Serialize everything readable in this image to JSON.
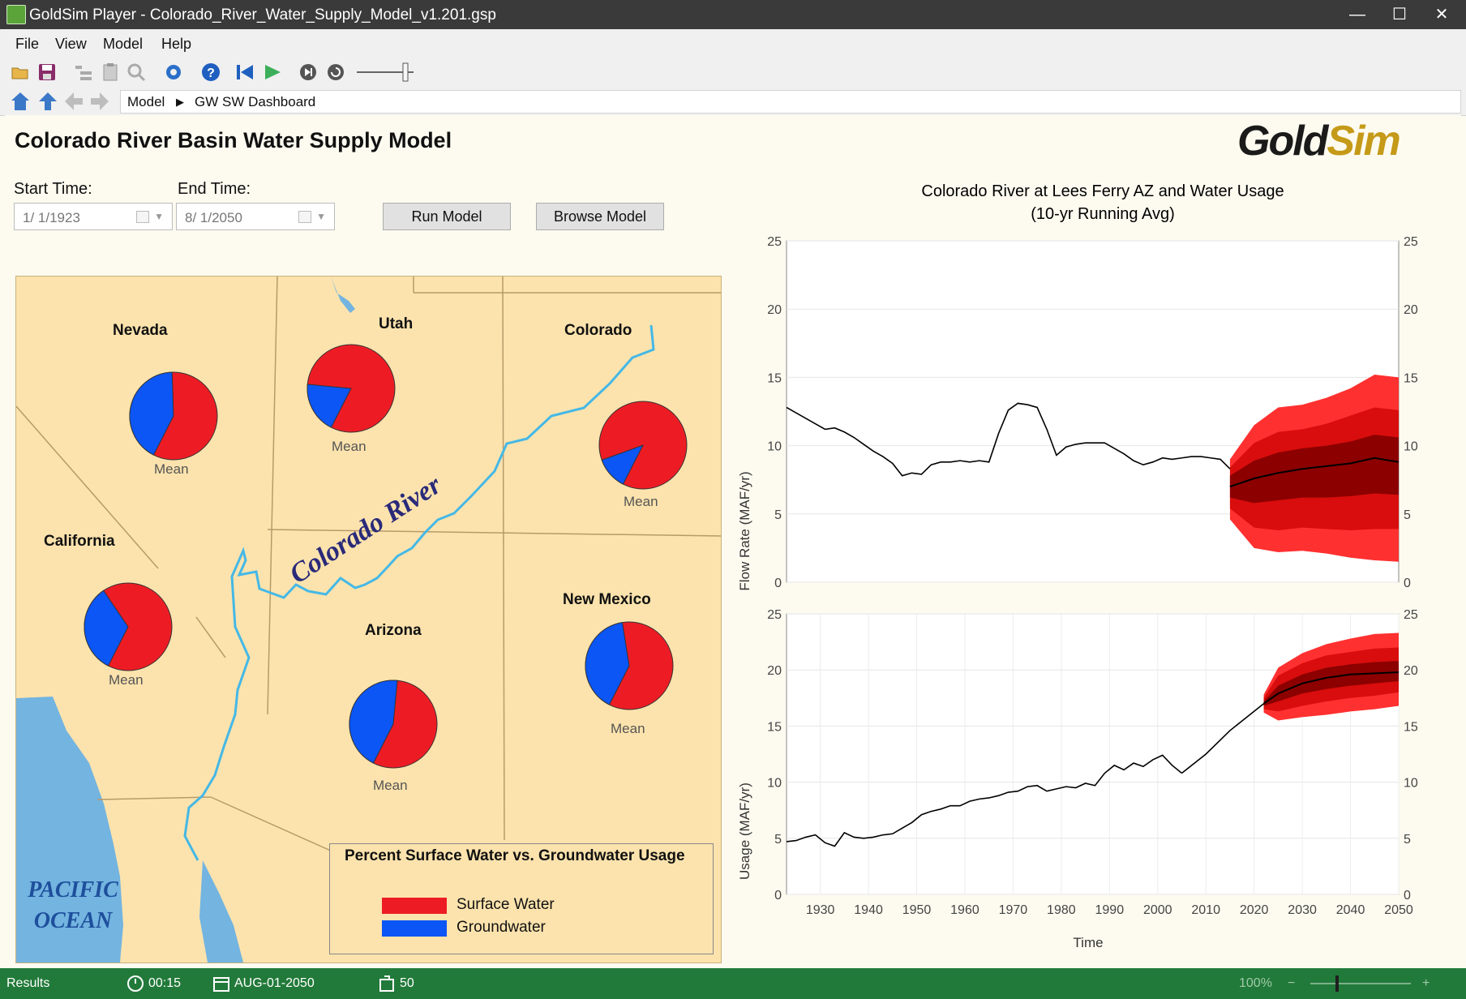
{
  "window": {
    "title": "GoldSim Player - Colorado_River_Water_Supply_Model_v1.201.gsp",
    "minimize": "—",
    "maximize": "☐",
    "close": "✕"
  },
  "menu": [
    "File",
    "View",
    "Model",
    "Help"
  ],
  "toolbar_icons": [
    "open-icon",
    "save-icon",
    "tree-icon",
    "clipboard-icon",
    "find-icon",
    "settings-icon",
    "help-icon",
    "reset-icon",
    "run-icon",
    "step-icon",
    "rerun-icon",
    "speed-slider"
  ],
  "breadcrumb": {
    "root": "Model",
    "current": "GW SW Dashboard"
  },
  "dashboard": {
    "title": "Colorado River Basin Water Supply Model",
    "logo_gold": "Gold",
    "logo_sim": "Sim",
    "start_label": "Start Time:",
    "start_value": "1/  1/1923",
    "end_label": "End Time:",
    "end_value": "8/  1/2050",
    "run_button": "Run Model",
    "browse_button": "Browse Model"
  },
  "map": {
    "river_label": "Colorado River",
    "ocean_label_1": "PACIFIC",
    "ocean_label_2": "OCEAN",
    "mean_label": "Mean",
    "states": [
      {
        "name": "Nevada",
        "surface_pct": 58
      },
      {
        "name": "Utah",
        "surface_pct": 81
      },
      {
        "name": "Colorado",
        "surface_pct": 88
      },
      {
        "name": "California",
        "surface_pct": 67
      },
      {
        "name": "Arizona",
        "surface_pct": 56
      },
      {
        "name": "New Mexico",
        "surface_pct": 60
      }
    ],
    "legend": {
      "title": "Percent Surface Water vs. Groundwater Usage",
      "items": [
        {
          "label": "Surface Water",
          "color": "#ed1c24"
        },
        {
          "label": "Groundwater",
          "color": "#0b56f5"
        }
      ]
    }
  },
  "chart_data": [
    {
      "type": "line",
      "title": "Colorado River at Lees Ferry AZ and Water Usage",
      "subtitle": "(10-yr Running Avg)",
      "ylabel": "Flow Rate (MAF/yr)",
      "xlim": [
        1923,
        2050
      ],
      "ylim": [
        0,
        25
      ],
      "yticks": [
        0,
        5,
        10,
        15,
        20,
        25
      ],
      "historical": {
        "x": [
          1923,
          1925,
          1927,
          1929,
          1931,
          1933,
          1935,
          1937,
          1939,
          1941,
          1943,
          1945,
          1947,
          1949,
          1951,
          1953,
          1955,
          1957,
          1959,
          1961,
          1963,
          1965,
          1967,
          1969,
          1971,
          1973,
          1975,
          1977,
          1979,
          1981,
          1983,
          1985,
          1987,
          1989,
          1991,
          1993,
          1995,
          1997,
          1999,
          2001,
          2003,
          2005,
          2007,
          2009,
          2011,
          2013,
          2015
        ],
        "y": [
          12.8,
          12.4,
          12.0,
          11.6,
          11.2,
          11.3,
          11.0,
          10.6,
          10.1,
          9.6,
          9.2,
          8.7,
          7.8,
          8.0,
          7.9,
          8.6,
          8.8,
          8.8,
          8.9,
          8.8,
          8.9,
          8.8,
          10.9,
          12.6,
          13.1,
          13.0,
          12.8,
          11.2,
          9.3,
          9.9,
          10.1,
          10.2,
          10.2,
          10.2,
          9.8,
          9.4,
          8.9,
          8.6,
          8.8,
          9.1,
          9.0,
          9.1,
          9.2,
          9.2,
          9.1,
          9.0,
          8.3
        ]
      },
      "forecast_mean": {
        "x": [
          2015,
          2020,
          2025,
          2030,
          2035,
          2040,
          2045,
          2050
        ],
        "y": [
          7.0,
          7.6,
          8.0,
          8.3,
          8.5,
          8.7,
          9.1,
          8.8
        ]
      },
      "forecast_band_outer": {
        "low": [
          4.6,
          2.5,
          2.2,
          2.3,
          2.1,
          1.8,
          1.6,
          1.5
        ],
        "high": [
          9.0,
          11.5,
          12.8,
          13.0,
          13.5,
          14.2,
          15.2,
          15.0
        ]
      },
      "forecast_band_mid": {
        "low": [
          5.4,
          4.0,
          3.8,
          4.0,
          3.9,
          3.8,
          3.9,
          3.9
        ],
        "high": [
          8.4,
          10.2,
          11.0,
          11.2,
          11.6,
          12.2,
          12.8,
          12.6
        ]
      },
      "forecast_band_inner": {
        "low": [
          6.2,
          5.8,
          6.0,
          6.2,
          6.2,
          6.3,
          6.5,
          6.4
        ],
        "high": [
          7.8,
          8.9,
          9.5,
          9.8,
          10.0,
          10.3,
          10.8,
          10.6
        ]
      }
    },
    {
      "type": "line",
      "xlabel": "Time",
      "ylabel": "Usage (MAF/yr)",
      "xlim": [
        1923,
        2050
      ],
      "ylim": [
        0,
        25
      ],
      "yticks": [
        0,
        5,
        10,
        15,
        20,
        25
      ],
      "xticks": [
        1930,
        1940,
        1950,
        1960,
        1970,
        1980,
        1990,
        2000,
        2010,
        2020,
        2030,
        2040,
        2050
      ],
      "historical": {
        "x": [
          1923,
          1925,
          1927,
          1929,
          1931,
          1933,
          1935,
          1937,
          1939,
          1941,
          1943,
          1945,
          1947,
          1949,
          1951,
          1953,
          1955,
          1957,
          1959,
          1961,
          1963,
          1965,
          1967,
          1969,
          1971,
          1973,
          1975,
          1977,
          1979,
          1981,
          1983,
          1985,
          1987,
          1989,
          1991,
          1993,
          1995,
          1997,
          1999,
          2001,
          2003,
          2005
        ],
        "y": [
          4.7,
          4.8,
          5.1,
          5.3,
          4.6,
          4.3,
          5.5,
          5.1,
          5.0,
          5.1,
          5.3,
          5.4,
          5.9,
          6.4,
          7.1,
          7.4,
          7.6,
          7.9,
          7.9,
          8.3,
          8.5,
          8.6,
          8.8,
          9.1,
          9.2,
          9.6,
          9.7,
          9.2,
          9.4,
          9.6,
          9.5,
          9.9,
          9.7,
          10.8,
          11.5,
          11.1,
          11.7,
          11.4,
          12.0,
          12.4,
          11.5,
          10.8
        ]
      },
      "projection": {
        "x": [
          2005,
          2010,
          2015,
          2022
        ],
        "y": [
          10.8,
          12.5,
          14.6,
          17.0
        ]
      },
      "forecast_mean": {
        "x": [
          2022,
          2025,
          2030,
          2035,
          2040,
          2045,
          2050
        ],
        "y": [
          17.0,
          17.9,
          18.8,
          19.3,
          19.6,
          19.7,
          19.8
        ]
      },
      "forecast_band_outer": {
        "low": [
          16.2,
          15.5,
          15.8,
          16.0,
          16.3,
          16.5,
          16.8
        ],
        "high": [
          17.8,
          20.2,
          21.5,
          22.3,
          22.8,
          23.2,
          23.3
        ]
      },
      "forecast_band_mid": {
        "low": [
          16.5,
          16.3,
          16.8,
          17.2,
          17.5,
          17.7,
          18.0
        ],
        "high": [
          17.5,
          19.5,
          20.6,
          21.3,
          21.6,
          21.9,
          22.0
        ]
      },
      "forecast_band_inner": {
        "low": [
          16.8,
          17.2,
          17.9,
          18.3,
          18.6,
          18.8,
          19.0
        ],
        "high": [
          17.2,
          18.6,
          19.6,
          20.2,
          20.5,
          20.7,
          20.8
        ]
      }
    }
  ],
  "status": {
    "mode": "Results",
    "elapsed": "00:15",
    "date": "AUG-01-2050",
    "realizations": "50",
    "zoom": "100%"
  }
}
